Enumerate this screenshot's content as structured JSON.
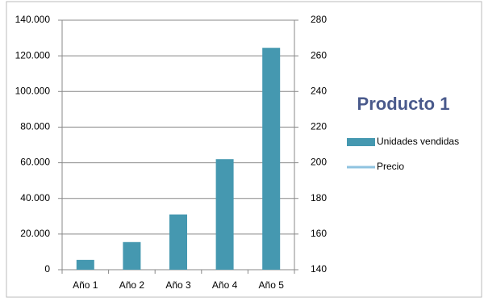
{
  "chart_data": {
    "type": "bar",
    "title": "Producto 1",
    "categories": [
      "Año 1",
      "Año 2",
      "Año 3",
      "Año 4",
      "Año 5"
    ],
    "series": [
      {
        "name": "Unidades vendidas",
        "color": "#4598b0",
        "values": [
          5500,
          15500,
          31000,
          62000,
          124500
        ]
      },
      {
        "name": "Precio",
        "color": "#8fc3e0",
        "axis": "y2",
        "type": "line",
        "values": [
          null,
          null,
          null,
          null,
          null
        ]
      }
    ],
    "ylim": [
      0,
      140000
    ],
    "yticks": [
      0,
      {
        "value": 20000,
        "label": "20.000"
      },
      {
        "value": 40000,
        "label": "40.000"
      },
      {
        "value": 60000,
        "label": "60.000"
      },
      {
        "value": 80000,
        "label": "80.000"
      },
      {
        "value": 100000,
        "label": "100.000"
      },
      {
        "value": 120000,
        "label": "120.000"
      },
      {
        "value": 140000,
        "label": "140.000"
      }
    ],
    "y2lim": [
      140,
      280
    ],
    "y2ticks": [
      140,
      160,
      180,
      200,
      220,
      240,
      260,
      280
    ],
    "grid": true,
    "legend": "right"
  }
}
